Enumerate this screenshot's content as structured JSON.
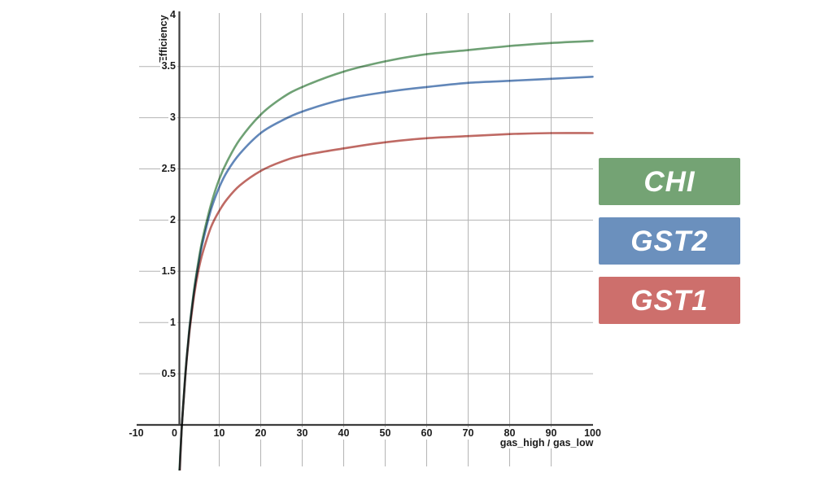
{
  "page": {
    "background": "#ffffff"
  },
  "chart_data": {
    "type": "line",
    "title": "",
    "xlabel": "gas_high / gas_low",
    "ylabel": "Efficiency",
    "xlim": [
      -10,
      100
    ],
    "ylim": [
      -0.45,
      4.02
    ],
    "grid": "on",
    "legend_position": "right",
    "axis_color": "#3d3d3d",
    "gridline_color": "#b4b4b4",
    "x_ticks": [
      -10,
      0,
      10,
      20,
      30,
      40,
      50,
      60,
      70,
      80,
      90,
      100
    ],
    "y_ticks": [
      0.5,
      1,
      1.5,
      2,
      2.5,
      3,
      3.5,
      4
    ],
    "x_gridlines": [
      10,
      20,
      30,
      40,
      50,
      60,
      70,
      80,
      90
    ],
    "y_gridlines": [
      0.5,
      1,
      1.5,
      2,
      2.5,
      3,
      3.5
    ],
    "x": [
      0.32,
      0.4,
      0.5,
      0.7,
      1,
      1.5,
      2,
      2.5,
      3,
      4,
      5,
      6,
      8,
      10,
      12,
      15,
      20,
      25,
      30,
      40,
      50,
      60,
      70,
      80,
      90,
      100
    ],
    "series": [
      {
        "name": "CHI",
        "color": "#6fa175",
        "values": [
          -0.52,
          -0.45,
          -0.37,
          -0.21,
          0,
          0.31,
          0.58,
          0.81,
          1.01,
          1.34,
          1.6,
          1.82,
          2.15,
          2.4,
          2.58,
          2.79,
          3.03,
          3.19,
          3.3,
          3.45,
          3.55,
          3.62,
          3.66,
          3.7,
          3.73,
          3.75
        ]
      },
      {
        "name": "GST2",
        "color": "#6287b9",
        "values": [
          -0.55,
          -0.48,
          -0.4,
          -0.23,
          0,
          0.3,
          0.57,
          0.8,
          1.0,
          1.32,
          1.57,
          1.78,
          2.1,
          2.32,
          2.48,
          2.65,
          2.85,
          2.97,
          3.06,
          3.18,
          3.25,
          3.3,
          3.34,
          3.36,
          3.38,
          3.4
        ]
      },
      {
        "name": "GST1",
        "color": "#bf6a64",
        "values": [
          -0.6,
          -0.52,
          -0.44,
          -0.25,
          0,
          0.29,
          0.56,
          0.78,
          0.97,
          1.28,
          1.51,
          1.68,
          1.93,
          2.09,
          2.21,
          2.34,
          2.48,
          2.57,
          2.63,
          2.7,
          2.76,
          2.8,
          2.82,
          2.84,
          2.85,
          2.85
        ]
      }
    ]
  },
  "legend": {
    "items": [
      {
        "label": "CHI",
        "color": "#74a374"
      },
      {
        "label": "GST2",
        "color": "#6b90bd"
      },
      {
        "label": "GST1",
        "color": "#cd6f6c"
      }
    ]
  }
}
